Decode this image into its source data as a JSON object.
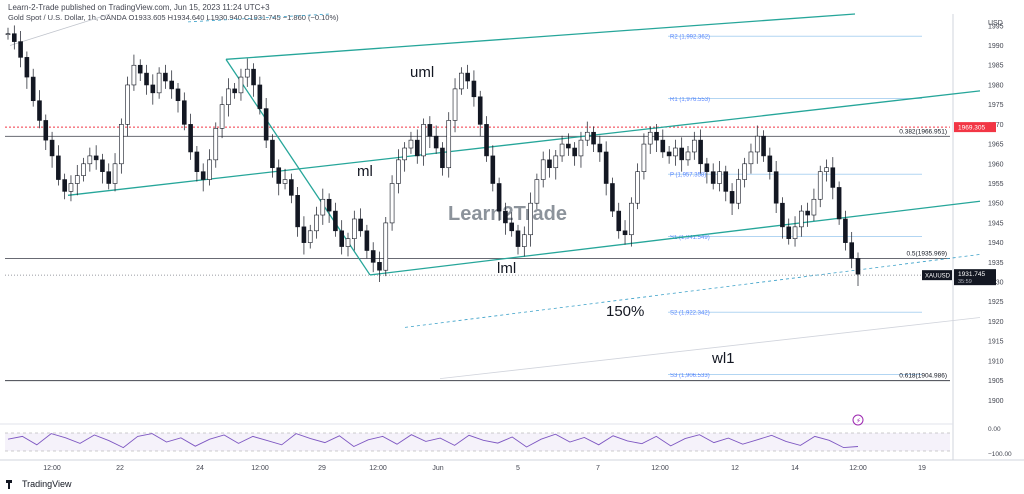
{
  "header": {
    "publisher_line": "Learn-2-Trade published on TradingView.com, Jun 15, 2023 11:24 UTC+3",
    "ohlc_line": "Gold Spot / U.S. Dollar, 1h, OANDA  O1933.605  H1934.640  L1930.940  C1931.745  −1.860 (−0.10%)"
  },
  "footer": {
    "brand": "TradingView"
  },
  "watermark": "Learn2Trade",
  "chart_data": {
    "type": "candlestick",
    "symbol": "XAUUSD",
    "currency_label": "USD",
    "ylim": [
      1895,
      1998
    ],
    "y_ticks": [
      1995,
      1990,
      1985,
      1980,
      1975,
      1970,
      1965,
      1960,
      1955,
      1950,
      1945,
      1940,
      1935,
      1930,
      1925,
      1920,
      1915,
      1910,
      1905,
      1900
    ],
    "x_tick_labels": [
      "12:00",
      "22",
      "24",
      "12:00",
      "29",
      "12:00",
      "Jun",
      "5",
      "7",
      "12:00",
      "12",
      "14",
      "12:00",
      "19"
    ],
    "price_tags": [
      {
        "label": "1969.305",
        "value": 1969.305,
        "color": "#f23645"
      },
      {
        "label": "XAUUSD",
        "value": 1931.745,
        "color": "#131722"
      },
      {
        "label": "1931.745",
        "value": 1931.745,
        "color": "#131722"
      },
      {
        "label": "35:59",
        "value": 1931.745,
        "color": "#131722"
      }
    ],
    "levels": [
      {
        "label": "0.382(1966.951)",
        "value": 1966.951,
        "color": "#434651"
      },
      {
        "label": "0.5(1935.969)",
        "value": 1935.969,
        "color": "#434651"
      },
      {
        "label": "0.618(1904.986)",
        "value": 1904.986,
        "color": "#131722"
      }
    ],
    "pivots": [
      {
        "label": "R2 (1,992.362)",
        "value": 1992.362
      },
      {
        "label": "R1 (1,976.553)",
        "value": 1976.553
      },
      {
        "label": "P (1,957.358)",
        "value": 1957.358
      },
      {
        "label": "S1 (1,941.549)",
        "value": 1941.549
      },
      {
        "label": "S2 (1,922.342)",
        "value": 1922.342
      },
      {
        "label": "S3 (1,906.533)",
        "value": 1906.533
      }
    ],
    "annotations": [
      "uml",
      "ml",
      "lml",
      "150%",
      "wl1"
    ],
    "price_path": [
      1993,
      1991,
      1987,
      1982,
      1976,
      1971,
      1966,
      1962,
      1956,
      1953,
      1955,
      1957,
      1960,
      1962,
      1961,
      1958,
      1955,
      1960,
      1970,
      1980,
      1985,
      1983,
      1980,
      1978,
      1983,
      1981,
      1979,
      1976,
      1970,
      1963,
      1958,
      1956,
      1961,
      1969,
      1975,
      1979,
      1978,
      1982,
      1984,
      1980,
      1974,
      1966,
      1959,
      1955,
      1956,
      1952,
      1944,
      1940,
      1943,
      1947,
      1951,
      1948,
      1943,
      1939,
      1941,
      1946,
      1943,
      1938,
      1935,
      1933,
      1945,
      1955,
      1961,
      1964,
      1966,
      1962,
      1970,
      1967,
      1964,
      1959,
      1971,
      1979,
      1983,
      1981,
      1977,
      1970,
      1962,
      1955,
      1948,
      1945,
      1943,
      1939,
      1942,
      1950,
      1956,
      1961,
      1959,
      1962,
      1965,
      1964,
      1962,
      1966,
      1968,
      1965,
      1963,
      1955,
      1948,
      1943,
      1942,
      1950,
      1958,
      1965,
      1968,
      1966,
      1963,
      1962,
      1964,
      1961,
      1963,
      1966,
      1960,
      1958,
      1955,
      1958,
      1953,
      1950,
      1956,
      1960,
      1963,
      1967,
      1962,
      1958,
      1950,
      1944,
      1941,
      1944,
      1948,
      1947,
      1951,
      1958,
      1959,
      1954,
      1946,
      1940,
      1936,
      1932
    ],
    "rsi": {
      "labels": [
        "0.00",
        "−100.00"
      ],
      "values": [
        -40,
        -30,
        -60,
        -20,
        -35,
        -55,
        -25,
        -45,
        -70,
        -30,
        -20,
        -50,
        -35,
        -65,
        -40,
        -25,
        -55,
        -30,
        -45,
        -60,
        -20,
        -38,
        -52,
        -28,
        -66,
        -42,
        -30,
        -58,
        -24,
        -48,
        -36,
        -62,
        -26,
        -44,
        -54,
        -32,
        -68,
        -40,
        -22,
        -50,
        -34,
        -60,
        -28,
        -46,
        -56,
        -30,
        -64,
        -38,
        -24,
        -52,
        -36,
        -58,
        -42,
        -26,
        -48,
        -62,
        -30,
        -44,
        -70,
        -66
      ]
    }
  }
}
